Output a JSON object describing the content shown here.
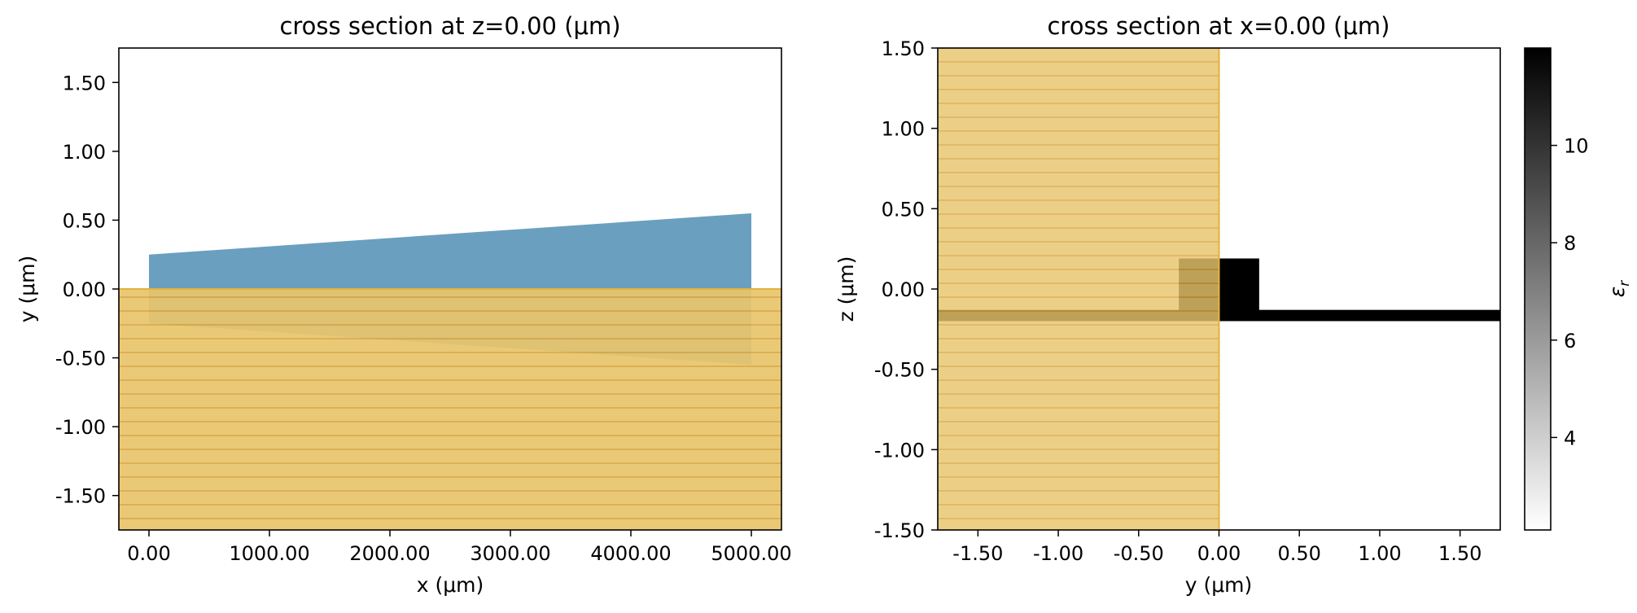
{
  "chart_data": [
    {
      "type": "cross-section",
      "title": "cross section at z=0.00 (μm)",
      "xlabel": "x (μm)",
      "ylabel": "y (μm)",
      "xlim": [
        -250,
        5250
      ],
      "ylim": [
        -1.75,
        1.75
      ],
      "xticks": [
        0,
        1000,
        2000,
        3000,
        4000,
        5000
      ],
      "xtick_labels": [
        "0.00",
        "1000.00",
        "2000.00",
        "3000.00",
        "4000.00",
        "5000.00"
      ],
      "yticks": [
        1.5,
        1.0,
        0.5,
        0.0,
        -0.5,
        -1.0,
        -1.5
      ],
      "ytick_labels": [
        "1.50",
        "1.00",
        "0.50",
        "0.00",
        "-0.50",
        "-1.00",
        "-1.50"
      ],
      "grid": false,
      "structures": [
        {
          "kind": "taper",
          "color": "#6a9fbf",
          "points": [
            [
              0,
              0.25
            ],
            [
              5000,
              0.55
            ],
            [
              5000,
              -0.55
            ],
            [
              0,
              -0.25
            ]
          ]
        },
        {
          "kind": "substrate",
          "color": "#e2b23a",
          "x": [
            -250,
            5250
          ],
          "y": [
            -1.75,
            0.0
          ]
        }
      ]
    },
    {
      "type": "heatmap",
      "title": "cross section at x=0.00 (μm)",
      "xlabel": "y (μm)",
      "ylabel": "z (μm)",
      "xlim": [
        -1.75,
        1.75
      ],
      "ylim": [
        -1.5,
        1.5
      ],
      "xticks": [
        -1.5,
        -1.0,
        -0.5,
        0.0,
        0.5,
        1.0,
        1.5
      ],
      "xtick_labels": [
        "-1.50",
        "-1.00",
        "-0.50",
        "0.00",
        "0.50",
        "1.00",
        "1.50"
      ],
      "yticks": [
        1.5,
        1.0,
        0.5,
        0.0,
        -0.5,
        -1.0,
        -1.5
      ],
      "ytick_labels": [
        "1.50",
        "1.00",
        "0.50",
        "0.00",
        "-0.50",
        "-1.00",
        "-1.50"
      ],
      "grid": false,
      "permittivity_regions": [
        {
          "name": "waveguide core",
          "y": [
            -0.25,
            0.25
          ],
          "z": [
            -0.15,
            0.19
          ],
          "eps": 12.0
        },
        {
          "name": "slab",
          "y": [
            -1.75,
            1.75
          ],
          "z": [
            -0.2,
            -0.13
          ],
          "eps": 12.0
        }
      ],
      "background_eps": 2.1,
      "overlay": {
        "kind": "substrate",
        "color": "#e2b23a",
        "y": [
          -1.75,
          0.0
        ],
        "z": [
          -1.5,
          1.5
        ]
      },
      "colorbar": {
        "label": "ε",
        "label_sub": "r",
        "range": [
          2.1,
          12.0
        ],
        "ticks": [
          4,
          6,
          8,
          10
        ],
        "tick_labels": [
          "4",
          "6",
          "8",
          "10"
        ]
      }
    }
  ]
}
